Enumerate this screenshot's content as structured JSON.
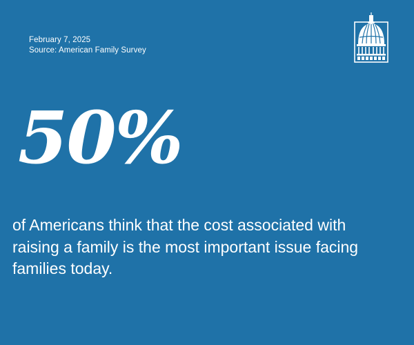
{
  "meta": {
    "date": "February 7, 2025",
    "source": "Source: American Family Survey"
  },
  "stat": {
    "value": "50%",
    "statement": "of Americans think that the cost associated with raising a family is the most important issue facing families today."
  },
  "logo": {
    "icon": "capitol-dome-icon"
  },
  "colors": {
    "background": "#1f72a8",
    "text": "#ffffff"
  }
}
